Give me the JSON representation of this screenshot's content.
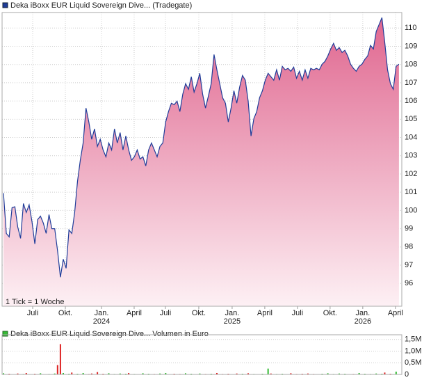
{
  "chart_data": [
    {
      "type": "area",
      "series": [
        {
          "name": "Deka iBoxx EUR Liquid Sovereign Dive... (Tradegate)",
          "color": "#1f3c99",
          "fill_top": "#e0668f",
          "fill_bottom": "#fdf0f4",
          "values": [
            100.95,
            98.74,
            98.55,
            100.15,
            100.2,
            99.1,
            98.47,
            100.38,
            99.89,
            100.31,
            99.39,
            98.17,
            99.5,
            99.69,
            99.31,
            98.74,
            99.77,
            99.0,
            99.0,
            97.79,
            96.34,
            97.33,
            96.83,
            98.93,
            98.74,
            99.89,
            101.6,
            102.75,
            103.7,
            105.61,
            104.85,
            103.9,
            104.47,
            103.51,
            103.9,
            103.32,
            102.94,
            103.7,
            103.32,
            104.47,
            103.7,
            104.27,
            103.32,
            104.08,
            103.32,
            102.75,
            102.94,
            103.32,
            102.82,
            102.94,
            102.44,
            103.32,
            103.7,
            103.32,
            102.94,
            103.51,
            103.7,
            104.85,
            105.42,
            105.88,
            105.8,
            105.99,
            105.42,
            106.37,
            106.95,
            106.64,
            107.33,
            106.49,
            106.95,
            107.52,
            106.37,
            105.61,
            106.26,
            106.95,
            108.55,
            107.71,
            106.95,
            106.18,
            105.88,
            104.85,
            105.61,
            106.56,
            105.88,
            106.76,
            107.4,
            107.14,
            105.99,
            104.08,
            105.04,
            105.42,
            106.18,
            106.56,
            107.14,
            107.52,
            107.33,
            107.14,
            107.71,
            107.14,
            107.9,
            107.71,
            107.79,
            107.63,
            107.86,
            107.25,
            107.63,
            107.14,
            107.71,
            107.25,
            107.79,
            107.71,
            107.79,
            107.71,
            108.02,
            108.17,
            108.47,
            108.85,
            109.16,
            108.78,
            108.93,
            108.66,
            108.78,
            108.47,
            108.02,
            107.79,
            107.63,
            107.9,
            108.02,
            108.28,
            108.47,
            109.05,
            108.85,
            109.81,
            110.19,
            110.57,
            109.24,
            107.71,
            106.95,
            106.64,
            107.9,
            108.02
          ]
        }
      ],
      "xlim": [
        -0.5,
        140
      ],
      "xticks": [
        {
          "value": 10.26,
          "label": "Juli"
        },
        {
          "value": 21.74,
          "label": "Okt."
        },
        {
          "value": 34.44,
          "label": "Jan.",
          "sublabel": "2024"
        },
        {
          "value": 45.92,
          "label": "April"
        },
        {
          "value": 56.91,
          "label": "Juli"
        },
        {
          "value": 68.64,
          "label": "Okt."
        },
        {
          "value": 80.36,
          "label": "Jan.",
          "sublabel": "2025"
        },
        {
          "value": 91.84,
          "label": "April"
        },
        {
          "value": 103.32,
          "label": "Juli"
        },
        {
          "value": 114.8,
          "label": "Okt."
        },
        {
          "value": 126.28,
          "label": "Jan.",
          "sublabel": "2026"
        },
        {
          "value": 137.76,
          "label": "April"
        }
      ],
      "ylim": [
        94.75,
        110.85
      ],
      "yticks": [
        96,
        97,
        98,
        99,
        100,
        101,
        102,
        103,
        104,
        105,
        106,
        107,
        108,
        109,
        110
      ],
      "grid": true,
      "annotation": "1 Tick = 1 Woche"
    },
    {
      "type": "bar",
      "series": [
        {
          "name": "Deka iBoxx EUR Liquid Sovereign Dive... Volumen in Euro",
          "color": "#33bb33",
          "down_color": "#dd2222",
          "values": [
            50000,
            0,
            30000,
            0,
            0,
            40000,
            0,
            20000,
            60000,
            0,
            0,
            30000,
            0,
            50000,
            0,
            0,
            20000,
            0,
            40000,
            400000,
            1300000,
            60000,
            0,
            30000,
            80000,
            0,
            30000,
            0,
            60000,
            0,
            20000,
            40000,
            0,
            100000,
            0,
            30000,
            0,
            50000,
            0,
            20000,
            0,
            40000,
            0,
            30000,
            60000,
            0,
            20000,
            0,
            0,
            50000,
            0,
            30000,
            0,
            20000,
            0,
            40000,
            0,
            60000,
            0,
            0,
            30000,
            0,
            20000,
            0,
            50000,
            0,
            30000,
            0,
            0,
            40000,
            0,
            20000,
            0,
            30000,
            0,
            60000,
            0,
            20000,
            0,
            30000,
            0,
            0,
            40000,
            0,
            30000,
            0,
            50000,
            0,
            20000,
            0,
            0,
            30000,
            0,
            250000,
            40000,
            0,
            20000,
            0,
            30000,
            0,
            0,
            50000,
            0,
            20000,
            0,
            30000,
            0,
            40000,
            0,
            20000,
            0,
            0,
            30000,
            0,
            50000,
            0,
            20000,
            0,
            40000,
            0,
            30000,
            0,
            0,
            20000,
            0,
            60000,
            0,
            30000,
            0,
            20000,
            0,
            40000,
            0,
            30000,
            80000,
            0,
            30000,
            0,
            120000,
            0
          ]
        }
      ],
      "xlim": [
        -0.5,
        140
      ],
      "ylim": [
        0,
        1700000
      ],
      "yticks": [
        0,
        {
          "value": 500000,
          "label": "0,5M"
        },
        {
          "value": 1000000,
          "label": "1,0M"
        },
        {
          "value": 1500000,
          "label": "1,5M"
        }
      ],
      "grid": true
    }
  ]
}
